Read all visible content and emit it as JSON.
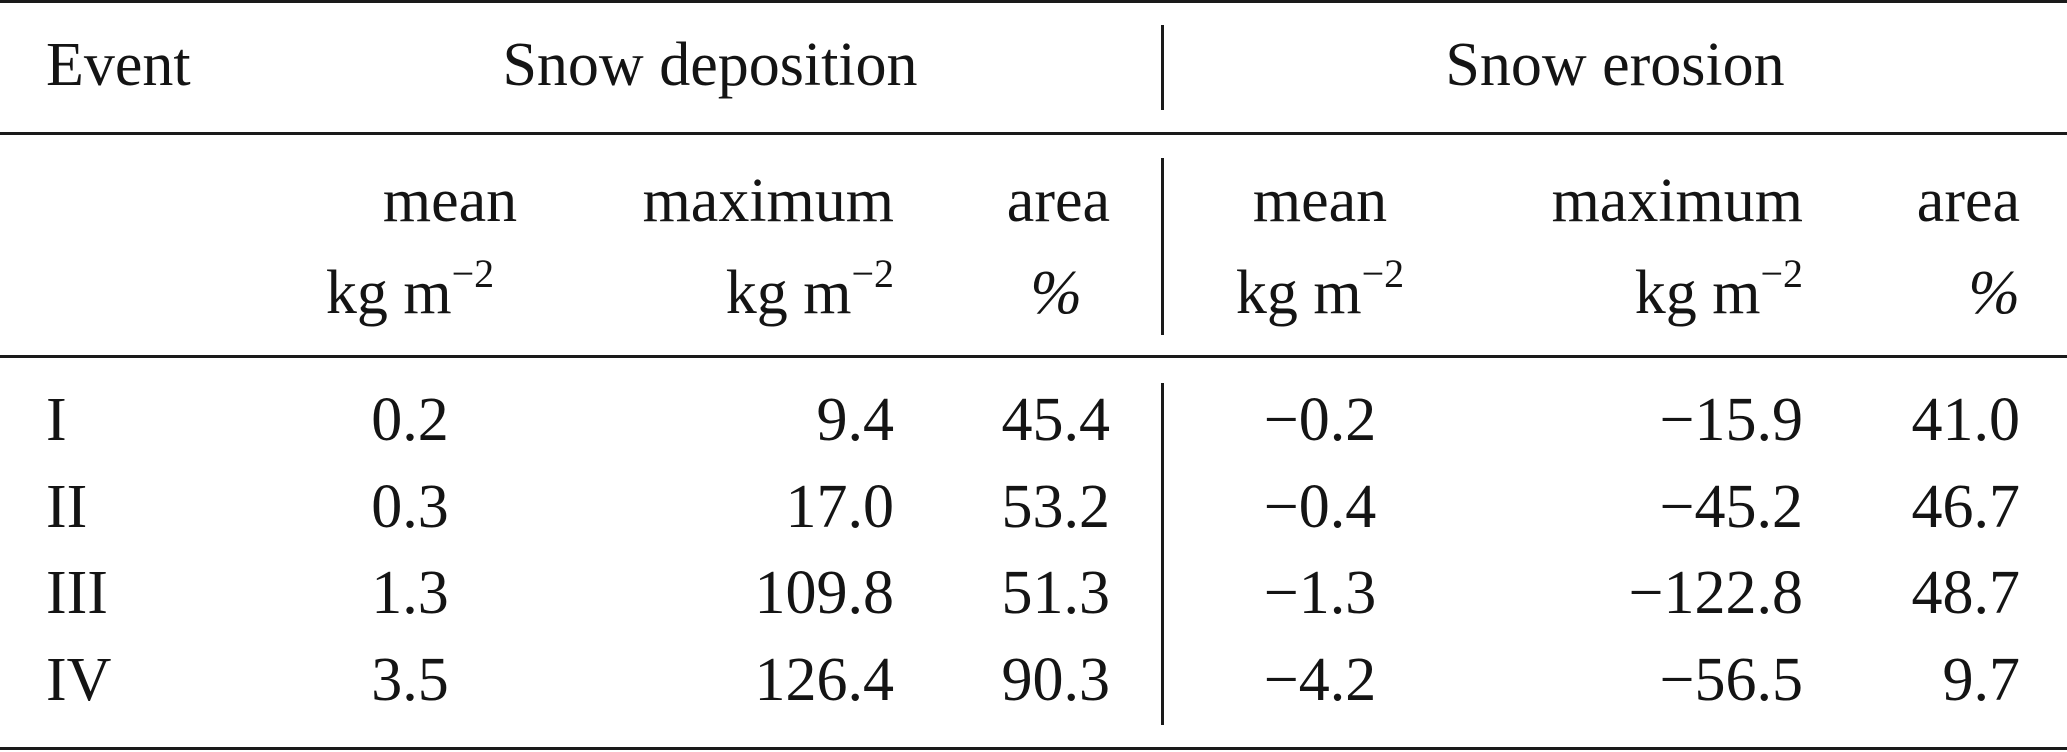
{
  "table": {
    "header": {
      "event": "Event",
      "group_deposition": "Snow deposition",
      "group_erosion": "Snow erosion"
    },
    "subheader": {
      "dep_mean": "mean",
      "dep_max": "maximum",
      "dep_area": "area",
      "ero_mean": "mean",
      "ero_max": "maximum",
      "ero_area": "area",
      "unit_kg": "kg m",
      "unit_exp": "−2",
      "unit_pct": "%"
    },
    "rows": [
      {
        "event": "I",
        "dep_mean": "0.2",
        "dep_max": "9.4",
        "dep_area": "45.4",
        "ero_mean": "−0.2",
        "ero_max": "−15.9",
        "ero_area": "41.0"
      },
      {
        "event": "II",
        "dep_mean": "0.3",
        "dep_max": "17.0",
        "dep_area": "53.2",
        "ero_mean": "−0.4",
        "ero_max": "−45.2",
        "ero_area": "46.7"
      },
      {
        "event": "III",
        "dep_mean": "1.3",
        "dep_max": "109.8",
        "dep_area": "51.3",
        "ero_mean": "−1.3",
        "ero_max": "−122.8",
        "ero_area": "48.7"
      },
      {
        "event": "IV",
        "dep_mean": "3.5",
        "dep_max": "126.4",
        "dep_area": "90.3",
        "ero_mean": "−4.2",
        "ero_max": "−56.5",
        "ero_area": "9.7"
      }
    ]
  }
}
